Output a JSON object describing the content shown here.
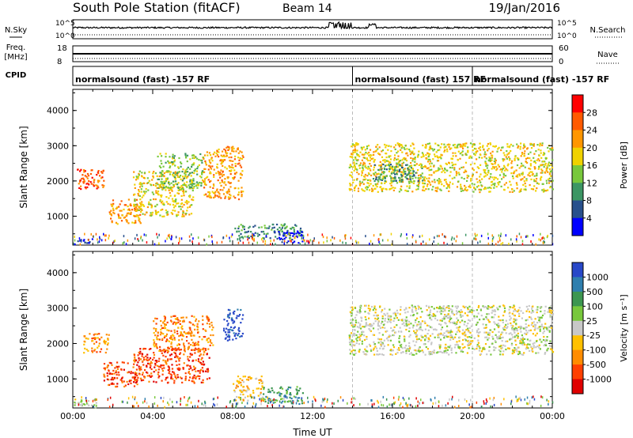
{
  "header": {
    "station": "South Pole Station (fitACF)",
    "beam": "Beam 14",
    "date": "19/Jan/2016"
  },
  "strip_panels": {
    "nsky_label": "N.Sky",
    "nsearch_label": "N.Search",
    "nsky_ticks": [
      "10^5",
      "10^0"
    ],
    "freq_label_line1": "Freq.",
    "freq_label_line2": "[MHz]",
    "freq_ticks": [
      "18",
      "8"
    ],
    "nave_label": "Nave",
    "nave_ticks": [
      "60",
      "0"
    ],
    "cpid_label": "CPID",
    "cpid_segments": [
      {
        "text": "normalsound (fast) -157 RF",
        "start_hour": 0
      },
      {
        "text": "normalsound (fast) 157 RF",
        "start_hour": 14
      },
      {
        "text": "normalsound (fast) -157 RF",
        "start_hour": 20
      }
    ]
  },
  "chart_data": [
    {
      "type": "heatmap",
      "name": "power",
      "ylabel": "Slant Range [km]",
      "xlim_hours": [
        0,
        24
      ],
      "ylim": [
        180,
        4600
      ],
      "yticks": [
        1000,
        2000,
        3000,
        4000
      ],
      "colorbar_label": "Power [dB]",
      "colorbar_ticks": [
        "28",
        "24",
        "20",
        "16",
        "12",
        "8",
        "4"
      ],
      "colors": [
        "#ff0000",
        "#ff5a00",
        "#ff9600",
        "#f0d200",
        "#78c83c",
        "#3c9664",
        "#28508c",
        "#0000ff"
      ],
      "regions": [
        {
          "t": [
            0.2,
            1.6
          ],
          "r": [
            1750,
            2350
          ],
          "level": 1
        },
        {
          "t": [
            1.8,
            3.4
          ],
          "r": [
            800,
            1500
          ],
          "level": 2
        },
        {
          "t": [
            3.0,
            6.0
          ],
          "r": [
            1000,
            2300
          ],
          "level": 3
        },
        {
          "t": [
            4.2,
            6.5
          ],
          "r": [
            1800,
            2800
          ],
          "level": 4
        },
        {
          "t": [
            6.5,
            8.5
          ],
          "r": [
            1500,
            3000
          ],
          "level": 2
        },
        {
          "t": [
            8.0,
            11.5
          ],
          "r": [
            400,
            800
          ],
          "level": 5
        },
        {
          "t": [
            10.0,
            11.5
          ],
          "r": [
            250,
            600
          ],
          "level": 7
        },
        {
          "t": [
            0,
            1.0
          ],
          "r": [
            200,
            400
          ],
          "level": 7
        },
        {
          "t": [
            13.8,
            24.0
          ],
          "r": [
            1700,
            3100
          ],
          "level": 3
        },
        {
          "t": [
            15.0,
            17.5
          ],
          "r": [
            2000,
            2500
          ],
          "level": 5
        }
      ]
    },
    {
      "type": "heatmap",
      "name": "velocity",
      "xlabel": "Time UT",
      "ylabel": "Slant Range [km]",
      "xlim_hours": [
        0,
        24
      ],
      "ylim": [
        180,
        4600
      ],
      "yticks": [
        1000,
        2000,
        3000,
        4000
      ],
      "xticks": [
        "00:00",
        "04:00",
        "08:00",
        "12:00",
        "16:00",
        "20:00",
        "00:00"
      ],
      "colorbar_label": "Velocity [m s⁻¹]",
      "colorbar_ticks": [
        "1000",
        "500",
        "100",
        "25",
        "-25",
        "-100",
        "-500",
        "-1000"
      ],
      "colors": [
        "#2848c8",
        "#2f7fae",
        "#3c9650",
        "#78c83c",
        "#c8c8c8",
        "#ffc000",
        "#ff8c00",
        "#ff4000",
        "#e00000"
      ],
      "regions": [
        {
          "t": [
            0.5,
            1.8
          ],
          "r": [
            1750,
            2300
          ],
          "level": 6
        },
        {
          "t": [
            1.5,
            3.2
          ],
          "r": [
            800,
            1500
          ],
          "level": 7
        },
        {
          "t": [
            3.0,
            6.8
          ],
          "r": [
            900,
            1900
          ],
          "level": 7
        },
        {
          "t": [
            4.0,
            7.0
          ],
          "r": [
            1800,
            2800
          ],
          "level": 6
        },
        {
          "t": [
            7.5,
            8.5
          ],
          "r": [
            2100,
            3000
          ],
          "level": 0
        },
        {
          "t": [
            8.0,
            9.5
          ],
          "r": [
            400,
            1100
          ],
          "level": 5
        },
        {
          "t": [
            9.5,
            11.5
          ],
          "r": [
            300,
            800
          ],
          "level": 2
        },
        {
          "t": [
            0,
            1.2
          ],
          "r": [
            200,
            450
          ],
          "level": 4
        },
        {
          "t": [
            13.8,
            24.0
          ],
          "r": [
            1700,
            3100
          ],
          "level": 4
        }
      ]
    }
  ],
  "data_range_notes": "",
  "axis_label_time": "Time UT"
}
